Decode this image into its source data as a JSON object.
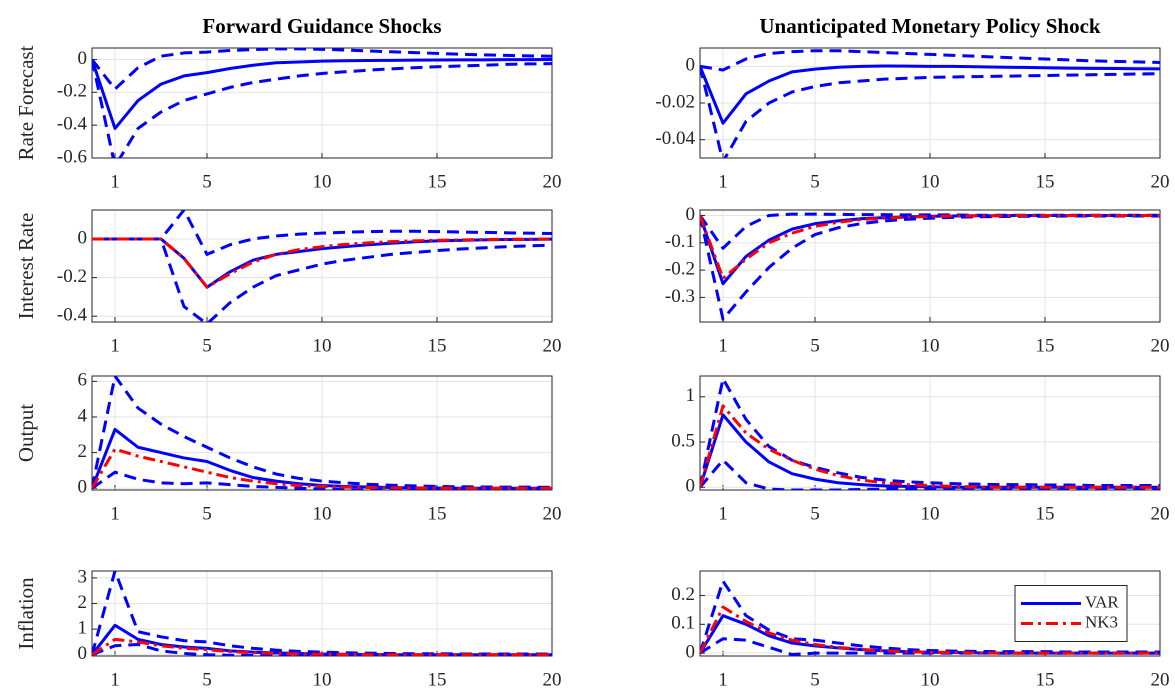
{
  "chart_data": [
    {
      "type": "line",
      "title": "Forward Guidance Shocks",
      "ylabel": "Rate Forecast",
      "x": [
        0,
        1,
        2,
        3,
        4,
        5,
        6,
        7,
        8,
        9,
        10,
        11,
        12,
        13,
        14,
        15,
        16,
        17,
        18,
        19,
        20
      ],
      "xlim": [
        0,
        20
      ],
      "xticks": [
        1,
        5,
        10,
        15,
        20
      ],
      "ylim": [
        -0.6,
        0.07
      ],
      "yticks": [
        -0.6,
        -0.4,
        -0.2,
        0
      ],
      "grid": true,
      "series": [
        {
          "color": "#0000ff",
          "style": "solid",
          "values": [
            0,
            -0.42,
            -0.25,
            -0.15,
            -0.1,
            -0.08,
            -0.055,
            -0.035,
            -0.02,
            -0.015,
            -0.01,
            -0.008,
            -0.006,
            -0.005,
            -0.004,
            -0.003,
            -0.002,
            -0.002,
            -0.001,
            -0.001,
            0
          ]
        },
        {
          "color": "#0000ff",
          "style": "dashed",
          "values": [
            0,
            -0.18,
            -0.05,
            0.02,
            0.04,
            0.045,
            0.055,
            0.06,
            0.065,
            0.065,
            0.062,
            0.058,
            0.052,
            0.047,
            0.042,
            0.037,
            0.032,
            0.028,
            0.025,
            0.022,
            0.02
          ]
        },
        {
          "color": "#0000ff",
          "style": "dashed",
          "values": [
            0,
            -0.65,
            -0.42,
            -0.32,
            -0.25,
            -0.21,
            -0.17,
            -0.14,
            -0.12,
            -0.1,
            -0.085,
            -0.075,
            -0.065,
            -0.057,
            -0.05,
            -0.044,
            -0.04,
            -0.035,
            -0.03,
            -0.027,
            -0.025
          ]
        }
      ]
    },
    {
      "type": "line",
      "title": "Unanticipated Monetary Policy Shock",
      "x": [
        0,
        1,
        2,
        3,
        4,
        5,
        6,
        7,
        8,
        9,
        10,
        11,
        12,
        13,
        14,
        15,
        16,
        17,
        18,
        19,
        20
      ],
      "xlim": [
        0,
        20
      ],
      "xticks": [
        1,
        5,
        10,
        15,
        20
      ],
      "ylim": [
        -0.05,
        0.01
      ],
      "yticks": [
        -0.04,
        -0.02,
        0
      ],
      "grid": true,
      "series": [
        {
          "color": "#0000ff",
          "style": "solid",
          "values": [
            0,
            -0.031,
            -0.015,
            -0.008,
            -0.003,
            -0.0015,
            -0.0005,
            0,
            0.0002,
            0.0001,
            0,
            0,
            -0.0002,
            -0.0004,
            -0.0006,
            -0.0008,
            -0.001,
            -0.0011,
            -0.0012,
            -0.0013,
            -0.0014
          ]
        },
        {
          "color": "#0000ff",
          "style": "dashed",
          "values": [
            0,
            -0.002,
            0.004,
            0.007,
            0.008,
            0.0085,
            0.0085,
            0.008,
            0.0075,
            0.007,
            0.0065,
            0.006,
            0.0055,
            0.005,
            0.0045,
            0.004,
            0.0035,
            0.003,
            0.0027,
            0.0024,
            0.0021
          ]
        },
        {
          "color": "#0000ff",
          "style": "dashed",
          "values": [
            0,
            -0.052,
            -0.03,
            -0.02,
            -0.014,
            -0.011,
            -0.009,
            -0.008,
            -0.007,
            -0.0065,
            -0.006,
            -0.0058,
            -0.0056,
            -0.0054,
            -0.0052,
            -0.005,
            -0.0048,
            -0.0046,
            -0.0044,
            -0.0042,
            -0.004
          ]
        }
      ]
    },
    {
      "type": "line",
      "ylabel": "Interest Rate",
      "x": [
        0,
        1,
        2,
        3,
        4,
        5,
        6,
        7,
        8,
        9,
        10,
        11,
        12,
        13,
        14,
        15,
        16,
        17,
        18,
        19,
        20
      ],
      "xlim": [
        0,
        20
      ],
      "xticks": [
        1,
        5,
        10,
        15,
        20
      ],
      "ylim": [
        -0.43,
        0.15
      ],
      "yticks": [
        -0.4,
        -0.2,
        0
      ],
      "grid": true,
      "series": [
        {
          "color": "#0000ff",
          "style": "solid",
          "values": [
            0,
            0,
            0,
            0,
            -0.1,
            -0.25,
            -0.17,
            -0.11,
            -0.08,
            -0.065,
            -0.05,
            -0.04,
            -0.03,
            -0.022,
            -0.015,
            -0.01,
            -0.007,
            -0.005,
            -0.003,
            -0.002,
            -0.001
          ]
        },
        {
          "color": "#ff0000",
          "style": "dashdot",
          "values": [
            0,
            0,
            0,
            0,
            -0.1,
            -0.25,
            -0.18,
            -0.12,
            -0.08,
            -0.055,
            -0.04,
            -0.028,
            -0.02,
            -0.014,
            -0.01,
            -0.007,
            -0.005,
            -0.003,
            -0.002,
            -0.001,
            -0.001
          ]
        },
        {
          "color": "#0000ff",
          "style": "dashed",
          "values": [
            0,
            0,
            0,
            0,
            0.15,
            -0.08,
            -0.03,
            0,
            0.015,
            0.025,
            0.03,
            0.035,
            0.038,
            0.04,
            0.04,
            0.038,
            0.036,
            0.034,
            0.032,
            0.03,
            0.028
          ]
        },
        {
          "color": "#0000ff",
          "style": "dashed",
          "values": [
            0,
            0,
            0,
            0,
            -0.35,
            -0.44,
            -0.33,
            -0.25,
            -0.19,
            -0.16,
            -0.13,
            -0.11,
            -0.095,
            -0.08,
            -0.07,
            -0.06,
            -0.052,
            -0.046,
            -0.04,
            -0.036,
            -0.032
          ]
        }
      ]
    },
    {
      "type": "line",
      "x": [
        0,
        1,
        2,
        3,
        4,
        5,
        6,
        7,
        8,
        9,
        10,
        11,
        12,
        13,
        14,
        15,
        16,
        17,
        18,
        19,
        20
      ],
      "xlim": [
        0,
        20
      ],
      "xticks": [
        1,
        5,
        10,
        15,
        20
      ],
      "ylim": [
        -0.39,
        0.02
      ],
      "yticks": [
        -0.3,
        -0.2,
        -0.1,
        0
      ],
      "grid": true,
      "series": [
        {
          "color": "#0000ff",
          "style": "solid",
          "values": [
            0,
            -0.25,
            -0.15,
            -0.09,
            -0.05,
            -0.03,
            -0.02,
            -0.012,
            -0.008,
            -0.005,
            -0.003,
            -0.002,
            -0.001,
            -0.001,
            0,
            0,
            0,
            0,
            0,
            0,
            0
          ]
        },
        {
          "color": "#ff0000",
          "style": "dashdot",
          "values": [
            0,
            -0.23,
            -0.16,
            -0.1,
            -0.065,
            -0.04,
            -0.025,
            -0.015,
            -0.01,
            -0.006,
            -0.004,
            -0.002,
            -0.001,
            -0.001,
            0,
            0,
            0,
            0,
            0,
            0,
            0
          ]
        },
        {
          "color": "#0000ff",
          "style": "dashed",
          "values": [
            0,
            -0.12,
            -0.04,
            0,
            0.005,
            0.005,
            0.004,
            0.003,
            0.003,
            0.002,
            0.002,
            0.002,
            0.001,
            0.001,
            0.001,
            0.001,
            0.001,
            0.001,
            0.001,
            0.001,
            0.001
          ]
        },
        {
          "color": "#0000ff",
          "style": "dashed",
          "values": [
            0,
            -0.38,
            -0.28,
            -0.19,
            -0.12,
            -0.07,
            -0.045,
            -0.03,
            -0.02,
            -0.014,
            -0.01,
            -0.007,
            -0.005,
            -0.004,
            -0.003,
            -0.003,
            -0.002,
            -0.002,
            -0.002,
            -0.002,
            -0.002
          ]
        }
      ]
    },
    {
      "type": "line",
      "ylabel": "Output",
      "x": [
        0,
        1,
        2,
        3,
        4,
        5,
        6,
        7,
        8,
        9,
        10,
        11,
        12,
        13,
        14,
        15,
        16,
        17,
        18,
        19,
        20
      ],
      "xlim": [
        0,
        20
      ],
      "xticks": [
        1,
        5,
        10,
        15,
        20
      ],
      "ylim": [
        -0.1,
        6.3
      ],
      "yticks": [
        0,
        2,
        4,
        6
      ],
      "grid": true,
      "series": [
        {
          "color": "#0000ff",
          "style": "solid",
          "values": [
            0,
            3.3,
            2.3,
            2.0,
            1.7,
            1.5,
            1.0,
            0.6,
            0.4,
            0.25,
            0.15,
            0.1,
            0.07,
            0.04,
            0.02,
            0.01,
            0,
            0,
            0,
            0,
            0
          ]
        },
        {
          "color": "#ff0000",
          "style": "dashdot",
          "values": [
            0,
            2.2,
            1.8,
            1.5,
            1.2,
            0.9,
            0.6,
            0.4,
            0.25,
            0.15,
            0.1,
            0.06,
            0.04,
            0.02,
            0.01,
            0,
            0,
            0,
            0,
            0,
            0
          ]
        },
        {
          "color": "#0000ff",
          "style": "dashed",
          "values": [
            0,
            6.3,
            4.5,
            3.6,
            2.9,
            2.3,
            1.7,
            1.2,
            0.8,
            0.55,
            0.4,
            0.3,
            0.22,
            0.17,
            0.13,
            0.1,
            0.08,
            0.07,
            0.06,
            0.06,
            0.05
          ]
        },
        {
          "color": "#0000ff",
          "style": "dashed",
          "values": [
            0,
            0.9,
            0.5,
            0.3,
            0.25,
            0.3,
            0.2,
            0.1,
            0.05,
            0,
            -0.05,
            -0.08,
            -0.1,
            -0.1,
            -0.1,
            -0.1,
            -0.1,
            -0.09,
            -0.08,
            -0.08,
            -0.07
          ]
        }
      ]
    },
    {
      "type": "line",
      "x": [
        0,
        1,
        2,
        3,
        4,
        5,
        6,
        7,
        8,
        9,
        10,
        11,
        12,
        13,
        14,
        15,
        16,
        17,
        18,
        19,
        20
      ],
      "xlim": [
        0,
        20
      ],
      "xticks": [
        1,
        5,
        10,
        15,
        20
      ],
      "ylim": [
        -0.03,
        1.23
      ],
      "yticks": [
        0,
        0.5,
        1
      ],
      "grid": true,
      "series": [
        {
          "color": "#0000ff",
          "style": "solid",
          "values": [
            0,
            0.8,
            0.5,
            0.28,
            0.15,
            0.09,
            0.05,
            0.03,
            0.015,
            0.01,
            0.005,
            0,
            0,
            0,
            0,
            0,
            0,
            0,
            0,
            0,
            0
          ]
        },
        {
          "color": "#ff0000",
          "style": "dashdot",
          "values": [
            0,
            0.9,
            0.6,
            0.42,
            0.3,
            0.2,
            0.13,
            0.08,
            0.05,
            0.03,
            0.02,
            0.01,
            0.005,
            0,
            0,
            0,
            0,
            0,
            0,
            0,
            0
          ]
        },
        {
          "color": "#0000ff",
          "style": "dashed",
          "values": [
            0,
            1.2,
            0.75,
            0.45,
            0.3,
            0.22,
            0.16,
            0.11,
            0.08,
            0.06,
            0.05,
            0.04,
            0.035,
            0.03,
            0.03,
            0.025,
            0.025,
            0.02,
            0.02,
            0.02,
            0.02
          ]
        },
        {
          "color": "#0000ff",
          "style": "dashed",
          "values": [
            0,
            0.3,
            0.05,
            -0.02,
            -0.03,
            -0.03,
            -0.03,
            -0.025,
            -0.02,
            -0.015,
            -0.01,
            -0.01,
            -0.01,
            -0.01,
            -0.01,
            -0.01,
            -0.01,
            -0.01,
            -0.01,
            -0.01,
            -0.01
          ]
        }
      ]
    },
    {
      "type": "line",
      "ylabel": "Inflation",
      "x": [
        0,
        1,
        2,
        3,
        4,
        5,
        6,
        7,
        8,
        9,
        10,
        11,
        12,
        13,
        14,
        15,
        16,
        17,
        18,
        19,
        20
      ],
      "xlim": [
        0,
        20
      ],
      "xticks": [
        1,
        5,
        10,
        15,
        20
      ],
      "ylim": [
        -0.05,
        3.27
      ],
      "yticks": [
        0,
        1,
        2,
        3
      ],
      "grid": true,
      "series": [
        {
          "color": "#0000ff",
          "style": "solid",
          "values": [
            0,
            1.15,
            0.6,
            0.4,
            0.3,
            0.25,
            0.15,
            0.1,
            0.07,
            0.05,
            0.03,
            0.02,
            0.01,
            0,
            0,
            0,
            0,
            0,
            0,
            0,
            0
          ]
        },
        {
          "color": "#ff0000",
          "style": "dashdot",
          "values": [
            0,
            0.6,
            0.5,
            0.35,
            0.25,
            0.2,
            0.12,
            0.08,
            0.05,
            0.03,
            0.02,
            0.01,
            0,
            0,
            0,
            0,
            0,
            0,
            0,
            0,
            0
          ]
        },
        {
          "color": "#0000ff",
          "style": "dashed",
          "values": [
            0,
            3.27,
            0.9,
            0.7,
            0.55,
            0.5,
            0.35,
            0.25,
            0.18,
            0.13,
            0.1,
            0.08,
            0.06,
            0.05,
            0.04,
            0.04,
            0.03,
            0.03,
            0.03,
            0.03,
            0.03
          ]
        },
        {
          "color": "#0000ff",
          "style": "dashed",
          "values": [
            0,
            0.35,
            0.4,
            0.15,
            0.05,
            0,
            -0.02,
            -0.03,
            -0.03,
            -0.03,
            -0.02,
            -0.02,
            -0.02,
            -0.02,
            -0.02,
            -0.02,
            -0.02,
            -0.02,
            -0.02,
            -0.02,
            -0.02
          ]
        }
      ]
    },
    {
      "type": "line",
      "legend": "right",
      "x": [
        0,
        1,
        2,
        3,
        4,
        5,
        6,
        7,
        8,
        9,
        10,
        11,
        12,
        13,
        14,
        15,
        16,
        17,
        18,
        19,
        20
      ],
      "xlim": [
        0,
        20
      ],
      "xticks": [
        1,
        5,
        10,
        15,
        20
      ],
      "ylim": [
        -0.01,
        0.285
      ],
      "yticks": [
        0,
        0.1,
        0.2
      ],
      "grid": true,
      "series": [
        {
          "name": "VAR",
          "color": "#0000ff",
          "style": "solid",
          "values": [
            0,
            0.13,
            0.1,
            0.06,
            0.035,
            0.025,
            0.018,
            0.012,
            0.008,
            0.005,
            0.003,
            0.002,
            0.001,
            0,
            0,
            0,
            0,
            0,
            0,
            0,
            0
          ]
        },
        {
          "name": "NK3",
          "color": "#ff0000",
          "style": "dashdot",
          "values": [
            0,
            0.16,
            0.11,
            0.07,
            0.045,
            0.03,
            0.02,
            0.013,
            0.008,
            0.005,
            0.003,
            0.002,
            0.001,
            0,
            0,
            0,
            0,
            0,
            0,
            0,
            0
          ]
        },
        {
          "color": "#0000ff",
          "style": "dashed",
          "values": [
            0,
            0.25,
            0.13,
            0.08,
            0.05,
            0.045,
            0.035,
            0.025,
            0.018,
            0.012,
            0.009,
            0.007,
            0.006,
            0.005,
            0.005,
            0.005,
            0.004,
            0.004,
            0.004,
            0.004,
            0.004
          ]
        },
        {
          "color": "#0000ff",
          "style": "dashed",
          "values": [
            0,
            0.05,
            0.045,
            0.02,
            -0.005,
            0,
            0,
            0,
            0,
            0,
            0,
            0,
            0,
            0,
            0,
            0,
            0,
            0,
            0,
            0,
            0
          ]
        }
      ]
    }
  ]
}
